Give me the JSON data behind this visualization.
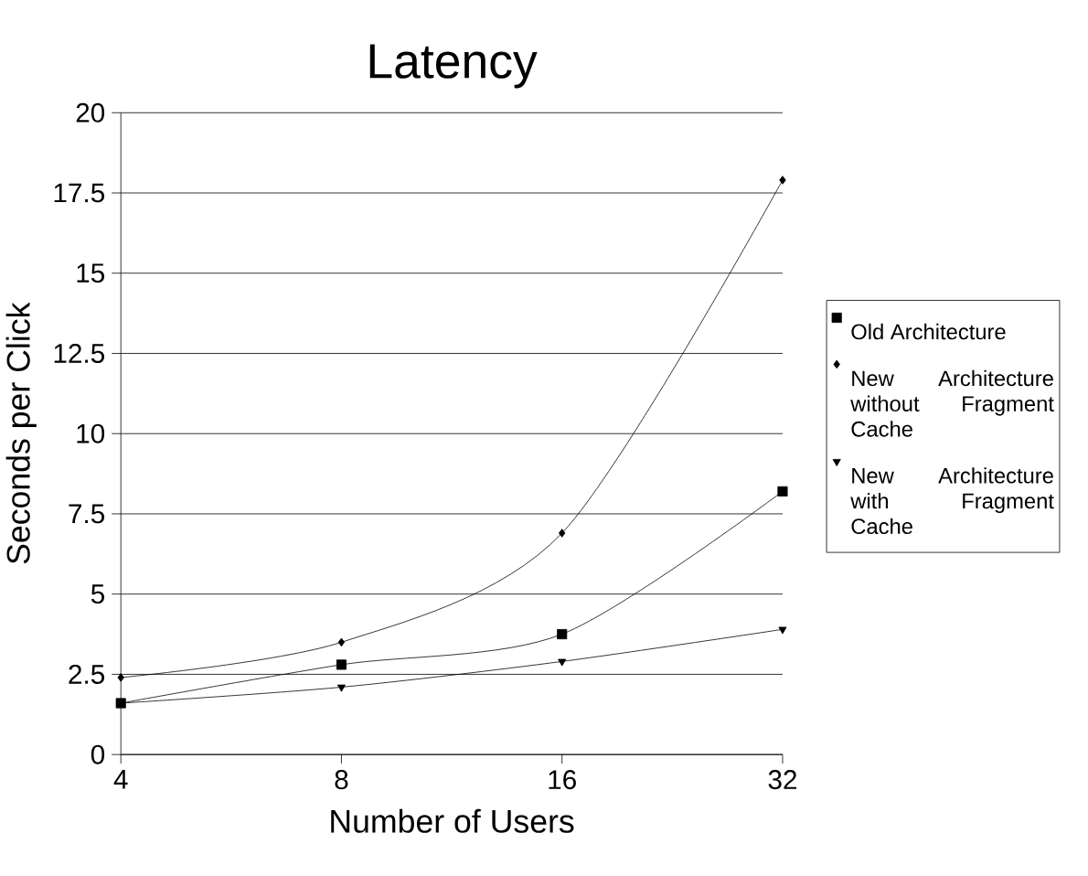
{
  "chart_data": {
    "type": "line",
    "title": "Latency",
    "xlabel": "Number of Users",
    "ylabel": "Seconds per Click",
    "categories": [
      "4",
      "8",
      "16",
      "32"
    ],
    "series": [
      {
        "name": "Old Architecture",
        "color": "#000000",
        "marker": "square",
        "values": [
          1.6,
          2.8,
          3.75,
          8.2
        ]
      },
      {
        "name": "New Architecture without Fragment Cache",
        "color": "#000000",
        "marker": "diamond",
        "values": [
          2.4,
          3.5,
          6.9,
          17.9
        ]
      },
      {
        "name": "New Architecture with Fragment Cache",
        "color": "#000000",
        "marker": "triangle",
        "values": [
          1.6,
          2.1,
          2.9,
          3.9
        ]
      }
    ],
    "ylim": [
      0,
      20
    ],
    "yticks": [
      0,
      2.5,
      5,
      7.5,
      10,
      12.5,
      15,
      17.5,
      20
    ],
    "grid": "y",
    "legend": "right",
    "line_style": "solid"
  }
}
